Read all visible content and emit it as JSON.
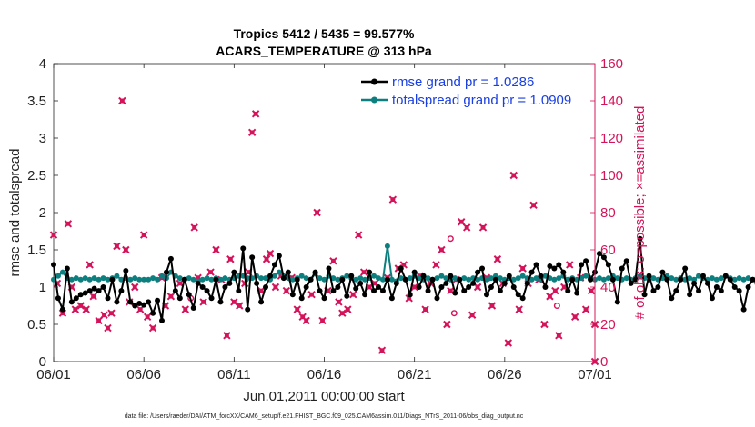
{
  "chart_data": {
    "type": "line",
    "title_line1": "Tropics 5412 / 5435 = 99.577%",
    "title_line2": "ACARS_TEMPERATURE @ 313 hPa",
    "xlabel": "Jun.01,2011 00:00:00 start",
    "ylabel_left": "rmse and totalspread",
    "ylabel_right": "# of obs: o=possible; ×=assimilated",
    "footer": "data file: /Users/raeder/DAI/ATM_forcXX/CAM6_setup/f.e21.FHIST_BGC.f09_025.CAM6assim.011/Diags_NTrS_2011-06/obs_diag_output.nc",
    "xlim": [
      0,
      30
    ],
    "ylim_left": [
      0,
      4
    ],
    "ylim_right": [
      0,
      160
    ],
    "x_ticks": [
      {
        "v": 0,
        "label": "06/01"
      },
      {
        "v": 5,
        "label": "06/06"
      },
      {
        "v": 10,
        "label": "06/11"
      },
      {
        "v": 15,
        "label": "06/16"
      },
      {
        "v": 20,
        "label": "06/21"
      },
      {
        "v": 25,
        "label": "06/26"
      },
      {
        "v": 30,
        "label": "07/01"
      }
    ],
    "y_ticks_left": [
      "0",
      "0.5",
      "1",
      "1.5",
      "2",
      "2.5",
      "3",
      "3.5",
      "4"
    ],
    "y_ticks_right": [
      "0",
      "20",
      "40",
      "60",
      "80",
      "100",
      "120",
      "140",
      "160"
    ],
    "colors": {
      "rmse": "#000000",
      "spread": "#0e7f7f",
      "obs": "#d4145a",
      "legend_text": "#1a3fe0"
    },
    "legend": [
      {
        "label": "rmse grand pr = 1.0286",
        "series": "rmse"
      },
      {
        "label": "totalspread grand pr = 1.0909",
        "series": "spread"
      }
    ],
    "interval_days": 0.25,
    "rmse": [
      1.3,
      0.85,
      0.7,
      1.25,
      0.8,
      0.85,
      0.9,
      0.92,
      0.95,
      0.98,
      0.95,
      1.0,
      0.85,
      1.1,
      0.8,
      0.95,
      1.22,
      0.8,
      0.75,
      0.78,
      0.76,
      0.8,
      0.65,
      0.82,
      0.55,
      1.2,
      1.38,
      0.95,
      0.85,
      1.1,
      0.9,
      0.72,
      1.05,
      1.0,
      0.95,
      0.85,
      1.1,
      0.8,
      1.0,
      1.05,
      1.2,
      0.95,
      1.52,
      0.7,
      1.4,
      1.05,
      0.8,
      1.0,
      1.15,
      1.3,
      1.42,
      1.12,
      1.2,
      0.9,
      1.1,
      0.85,
      1.0,
      1.1,
      1.2,
      0.95,
      0.85,
      1.25,
      0.95,
      1.0,
      1.1,
      0.88,
      1.15,
      0.98,
      1.05,
      0.9,
      1.2,
      0.95,
      1.0,
      0.95,
      1.1,
      0.85,
      1.05,
      1.25,
      1.1,
      0.9,
      1.2,
      1.0,
      1.15,
      0.95,
      1.1,
      0.85,
      1.0,
      1.05,
      1.15,
      0.92,
      1.1,
      0.95,
      1.0,
      1.05,
      1.2,
      1.25,
      0.9,
      1.0,
      1.1,
      0.95,
      1.05,
      1.15,
      1.0,
      0.9,
      0.85,
      1.05,
      1.2,
      1.3,
      1.15,
      1.0,
      1.28,
      1.25,
      1.3,
      1.2,
      0.95,
      1.1,
      0.92,
      1.3,
      1.35,
      1.1,
      1.2,
      1.45,
      1.4,
      1.3,
      1.1,
      0.8,
      1.25,
      1.35,
      1.05,
      1.1,
      1.65,
      0.9,
      1.15,
      0.95,
      1.0,
      1.2,
      1.1,
      0.85,
      0.95,
      1.1,
      1.25,
      0.9,
      1.05,
      0.95,
      1.15,
      1.05,
      0.85,
      1.0,
      0.95,
      1.15,
      1.1,
      1.0,
      0.95,
      0.7,
      1.0,
      1.1,
      1.05,
      0.98,
      1.08,
      1.05,
      1.0,
      0.95,
      0.88,
      1.1,
      1.05,
      1.0,
      1.05
    ],
    "totalspread": [
      1.1,
      1.15,
      1.2,
      1.12,
      1.1,
      1.12,
      1.1,
      1.12,
      1.1,
      1.12,
      1.1,
      1.12,
      1.1,
      1.12,
      1.15,
      1.1,
      1.12,
      1.1,
      1.12,
      1.1,
      1.1,
      1.1,
      1.12,
      1.1,
      1.15,
      1.12,
      1.2,
      1.15,
      1.12,
      1.1,
      1.12,
      1.1,
      1.08,
      1.1,
      1.12,
      1.1,
      1.12,
      1.1,
      1.12,
      1.1,
      1.12,
      1.15,
      1.15,
      1.12,
      1.12,
      1.15,
      1.12,
      1.12,
      1.1,
      1.15,
      1.2,
      1.15,
      1.12,
      1.1,
      1.12,
      1.15,
      1.12,
      1.1,
      1.18,
      1.12,
      1.1,
      1.15,
      1.12,
      1.1,
      1.12,
      1.15,
      1.12,
      1.1,
      1.12,
      1.1,
      1.12,
      1.15,
      1.12,
      1.1,
      1.55,
      1.1,
      1.08,
      1.12,
      1.1,
      1.12,
      1.15,
      1.12,
      1.1,
      1.12,
      1.1,
      1.12,
      1.15,
      1.12,
      1.1,
      1.12,
      1.1,
      1.12,
      1.1,
      1.12,
      1.1,
      1.12,
      1.1,
      1.12,
      1.15,
      1.12,
      1.1,
      1.12,
      1.1,
      1.12,
      1.15,
      1.12,
      1.1,
      1.12,
      1.1,
      1.15,
      1.12,
      1.1,
      1.12,
      1.15,
      1.1,
      1.12,
      1.1,
      1.12,
      1.15,
      1.12,
      1.1,
      1.12,
      1.1,
      1.12,
      1.15,
      1.12,
      1.1,
      1.12,
      1.1,
      1.12,
      1.15,
      1.12,
      1.1,
      1.12,
      1.1,
      1.12,
      1.15,
      1.12,
      1.1,
      1.12,
      1.1,
      1.12,
      1.1,
      1.15,
      1.12,
      1.1,
      1.12,
      1.1,
      1.12,
      1.15,
      1.12,
      1.1,
      1.12,
      1.1,
      1.12,
      1.1,
      1.12,
      1.1,
      1.12,
      1.15,
      1.12,
      1.1,
      1.12,
      1.1,
      1.12,
      1.1,
      1.08,
      1.1,
      1.12,
      1.1,
      1.08
    ],
    "obs_assimilated": [
      [
        0.0,
        68
      ],
      [
        0.2,
        42
      ],
      [
        0.5,
        26
      ],
      [
        0.8,
        74
      ],
      [
        1.0,
        40
      ],
      [
        1.2,
        28
      ],
      [
        1.5,
        30
      ],
      [
        1.8,
        28
      ],
      [
        2.0,
        52
      ],
      [
        2.2,
        35
      ],
      [
        2.5,
        22
      ],
      [
        2.8,
        25
      ],
      [
        3.0,
        18
      ],
      [
        3.2,
        26
      ],
      [
        3.5,
        62
      ],
      [
        3.8,
        140
      ],
      [
        4.0,
        60
      ],
      [
        4.2,
        32
      ],
      [
        4.5,
        40
      ],
      [
        4.8,
        28
      ],
      [
        5.0,
        68
      ],
      [
        5.2,
        24
      ],
      [
        5.5,
        18
      ],
      [
        6.0,
        45
      ],
      [
        6.2,
        30
      ],
      [
        6.5,
        35
      ],
      [
        7.0,
        42
      ],
      [
        7.3,
        28
      ],
      [
        7.8,
        72
      ],
      [
        8.0,
        45
      ],
      [
        8.3,
        32
      ],
      [
        8.7,
        48
      ],
      [
        9.0,
        60
      ],
      [
        9.3,
        44
      ],
      [
        9.6,
        14
      ],
      [
        9.8,
        55
      ],
      [
        10.0,
        32
      ],
      [
        10.3,
        30
      ],
      [
        10.6,
        42
      ],
      [
        10.8,
        48
      ],
      [
        11.0,
        123
      ],
      [
        11.2,
        133
      ],
      [
        11.5,
        38
      ],
      [
        11.8,
        55
      ],
      [
        12.0,
        58
      ],
      [
        12.3,
        40
      ],
      [
        12.6,
        46
      ],
      [
        12.9,
        38
      ],
      [
        13.2,
        45
      ],
      [
        13.5,
        28
      ],
      [
        13.8,
        24
      ],
      [
        14.0,
        22
      ],
      [
        14.3,
        36
      ],
      [
        14.6,
        80
      ],
      [
        14.9,
        22
      ],
      [
        15.2,
        38
      ],
      [
        15.5,
        54
      ],
      [
        15.8,
        32
      ],
      [
        16.0,
        26
      ],
      [
        16.3,
        28
      ],
      [
        16.6,
        36
      ],
      [
        16.9,
        68
      ],
      [
        17.2,
        48
      ],
      [
        17.5,
        40
      ],
      [
        17.8,
        42
      ],
      [
        18.2,
        6
      ],
      [
        18.5,
        45
      ],
      [
        18.8,
        87
      ],
      [
        19.1,
        50
      ],
      [
        19.4,
        52
      ],
      [
        19.7,
        34
      ],
      [
        20.0,
        40
      ],
      [
        20.3,
        46
      ],
      [
        20.6,
        28
      ],
      [
        20.9,
        42
      ],
      [
        21.2,
        52
      ],
      [
        21.5,
        60
      ],
      [
        21.8,
        20
      ],
      [
        22.0,
        38
      ],
      [
        22.3,
        44
      ],
      [
        22.6,
        75
      ],
      [
        22.9,
        72
      ],
      [
        23.2,
        25
      ],
      [
        23.5,
        40
      ],
      [
        23.8,
        72
      ],
      [
        24.0,
        45
      ],
      [
        24.3,
        30
      ],
      [
        24.6,
        55
      ],
      [
        24.9,
        42
      ],
      [
        25.2,
        10
      ],
      [
        25.5,
        100
      ],
      [
        25.8,
        28
      ],
      [
        26.0,
        50
      ],
      [
        26.3,
        42
      ],
      [
        26.6,
        84
      ],
      [
        26.9,
        44
      ],
      [
        27.2,
        20
      ],
      [
        27.5,
        35
      ],
      [
        27.8,
        38
      ],
      [
        28.0,
        14
      ],
      [
        28.3,
        40
      ],
      [
        28.6,
        52
      ],
      [
        28.9,
        24
      ],
      [
        29.2,
        45
      ],
      [
        29.5,
        28
      ],
      [
        29.8,
        38
      ],
      [
        30.0,
        20
      ],
      [
        30.0,
        0
      ]
    ],
    "obs_possible_extra": [
      [
        7.6,
        34
      ],
      [
        22.0,
        66
      ],
      [
        22.2,
        26
      ],
      [
        27.9,
        30
      ]
    ]
  }
}
